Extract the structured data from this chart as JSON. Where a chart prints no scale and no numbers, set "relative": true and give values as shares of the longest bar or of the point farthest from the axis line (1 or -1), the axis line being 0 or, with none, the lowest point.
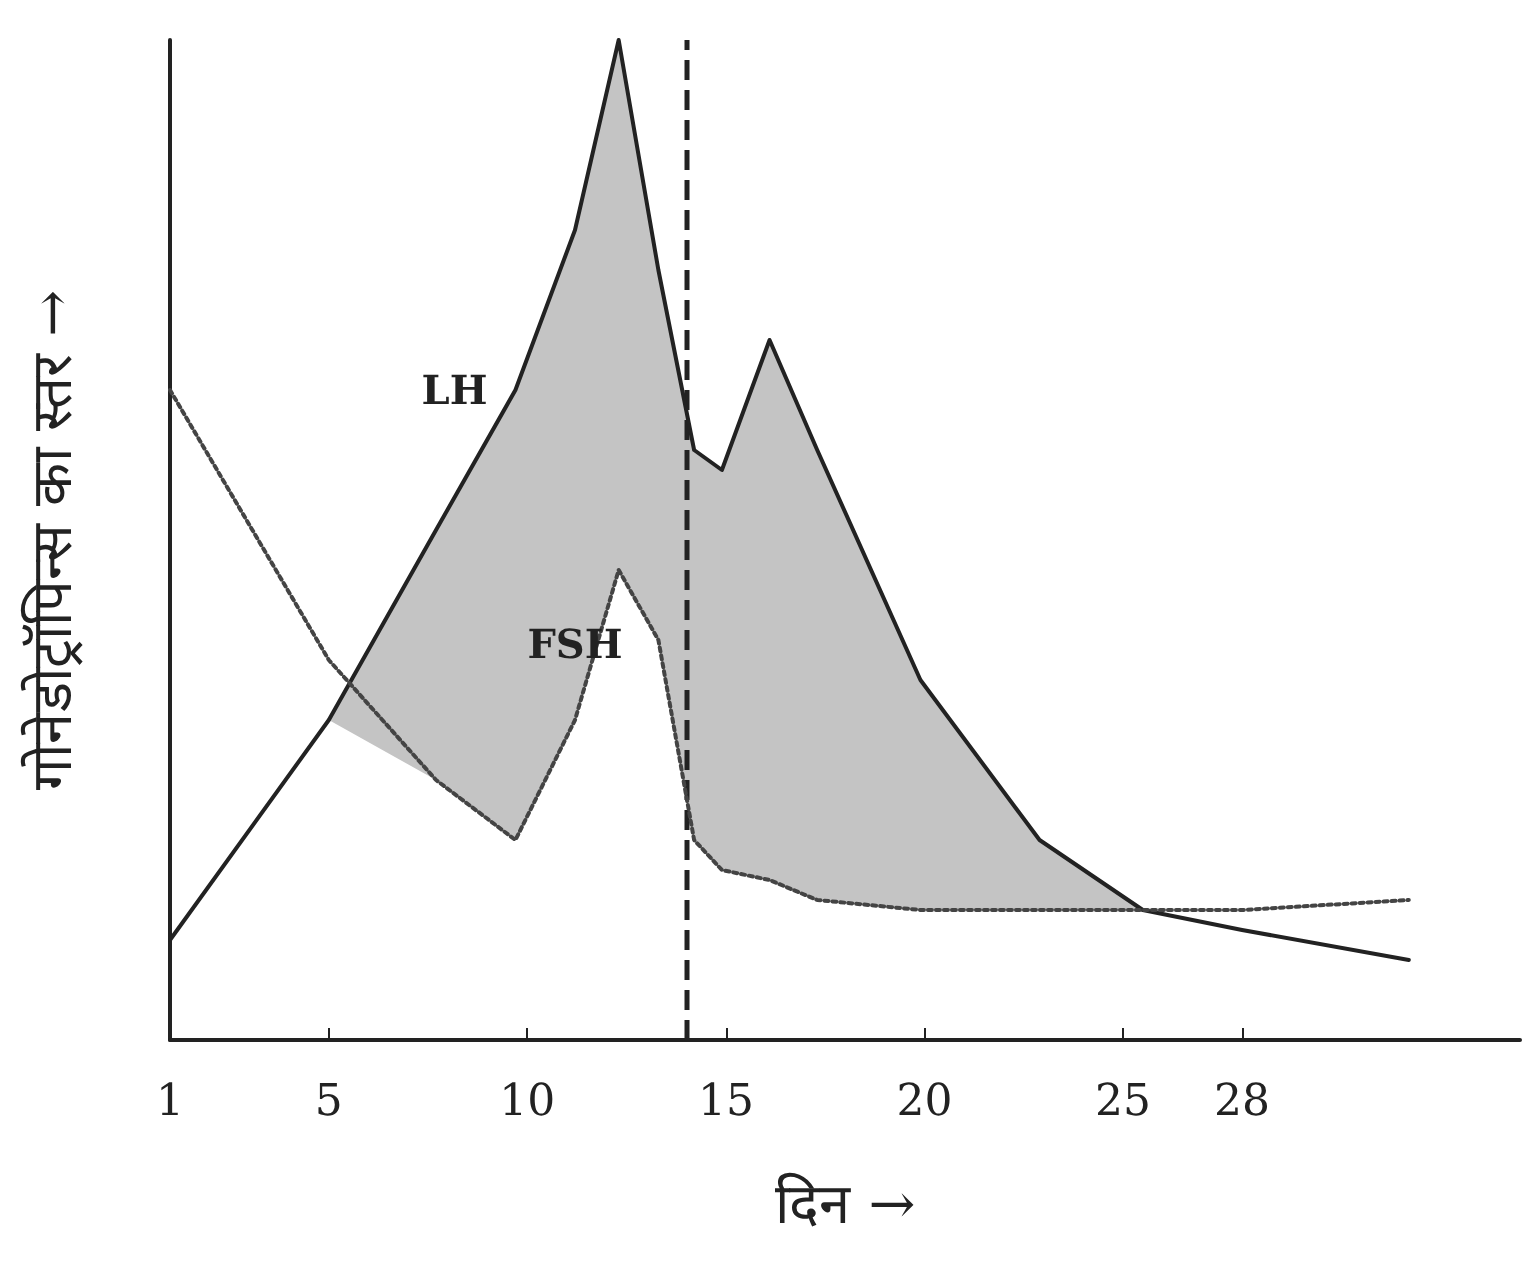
{
  "chart_data": {
    "type": "line",
    "relative": true,
    "xlabel": "दिन →",
    "ylabel": "गोनेडोट्रॉपिन्स का स्तर →",
    "x": [
      1,
      5,
      7.7,
      9.7,
      11.2,
      12.3,
      13.3,
      14.2,
      14.9,
      16.1,
      17.3,
      19.9,
      22.9,
      25.5,
      28,
      32.2
    ],
    "xlim": [
      1,
      35
    ],
    "xticks": [
      1,
      5,
      10,
      15,
      20,
      25,
      28
    ],
    "series": [
      {
        "name": "LH",
        "color": "#222222",
        "line_style": "solid",
        "values": [
          0.1,
          0.32,
          0.51,
          0.65,
          0.81,
          1,
          0.77,
          0.59,
          0.57,
          0.7,
          0.59,
          0.36,
          0.2,
          0.13,
          0.11,
          0.08
        ],
        "upper": [
          0.1,
          0.32,
          0.51,
          0.65,
          0.81,
          1,
          0.77,
          0.59,
          0.57,
          0.7,
          0.59,
          0.36,
          0.2,
          0.13,
          0.11,
          0.08
        ],
        "lower": [
          0.1,
          0.32,
          0.26,
          0.2,
          0.32,
          0.47,
          0.4,
          0.2,
          0.17,
          0.16,
          0.14,
          0.13,
          0.13,
          0.13,
          0.11,
          0.08
        ]
      },
      {
        "name": "FSH",
        "color": "#444444",
        "line_style": "dotted",
        "values": [
          0.65,
          0.38,
          0.26,
          0.2,
          0.32,
          0.47,
          0.4,
          0.2,
          0.17,
          0.16,
          0.14,
          0.13,
          0.13,
          0.13,
          0.13,
          0.14
        ]
      }
    ],
    "ref_lines": [
      {
        "axis": "x",
        "value": 14,
        "line_style": "dashed",
        "color": "#222222"
      }
    ],
    "marker": "none",
    "grid": false,
    "legend": false
  }
}
